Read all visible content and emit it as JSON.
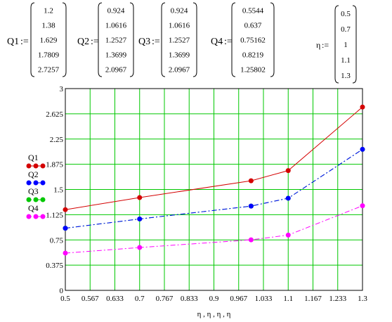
{
  "vectors": [
    {
      "name": "Q1",
      "assign": ":=",
      "values": [
        "1.2",
        "1.38",
        "1.629",
        "1.7809",
        "2.7257"
      ]
    },
    {
      "name": "Q2",
      "assign": ":=",
      "values": [
        "0.924",
        "1.0616",
        "1.2527",
        "1.3699",
        "2.0967"
      ]
    },
    {
      "name": "Q3",
      "assign": ":=",
      "values": [
        "0.924",
        "1.0616",
        "1.2527",
        "1.3699",
        "2.0967"
      ]
    },
    {
      "name": "Q4",
      "assign": ":=",
      "values": [
        "0.5544",
        "0.637",
        "0.75162",
        "0.8219",
        "1.25802"
      ]
    },
    {
      "name": "η",
      "assign": ":=",
      "values": [
        "0.5",
        "0.7",
        "1",
        "1.1",
        "1.3"
      ]
    }
  ],
  "chart_data": {
    "type": "line",
    "x": [
      0.5,
      0.7,
      1,
      1.1,
      1.3
    ],
    "xlabel": "η , η , η , η",
    "ylabel": "",
    "xlim": [
      0.5,
      1.3
    ],
    "ylim": [
      0,
      3
    ],
    "x_ticks": [
      "0.5",
      "0.567",
      "0.633",
      "0.7",
      "0.767",
      "0.833",
      "0.9",
      "0.967",
      "1.033",
      "1.1",
      "1.167",
      "1.233",
      "1.3"
    ],
    "y_ticks": [
      "0",
      "0.375",
      "0.75",
      "1.125",
      "1.5",
      "1.875",
      "2.25",
      "2.625",
      "3"
    ],
    "grid": true,
    "grid_color": "#00c800",
    "legend_placement": "left",
    "series": [
      {
        "name": "Q1",
        "values": [
          1.2,
          1.38,
          1.629,
          1.7809,
          2.7257
        ],
        "color": "#d40000",
        "dash": "solid"
      },
      {
        "name": "Q2",
        "values": [
          0.924,
          1.0616,
          1.2527,
          1.3699,
          2.0967
        ],
        "color": "#0000ff",
        "dash": "dashdot"
      },
      {
        "name": "Q3",
        "values": [
          0.924,
          1.0616,
          1.2527,
          1.3699,
          2.0967
        ],
        "color": "#00c800",
        "dash": "dashdot"
      },
      {
        "name": "Q4",
        "values": [
          0.5544,
          0.637,
          0.75162,
          0.8219,
          1.25802
        ],
        "color": "#ff00ff",
        "dash": "dashdot"
      }
    ]
  }
}
